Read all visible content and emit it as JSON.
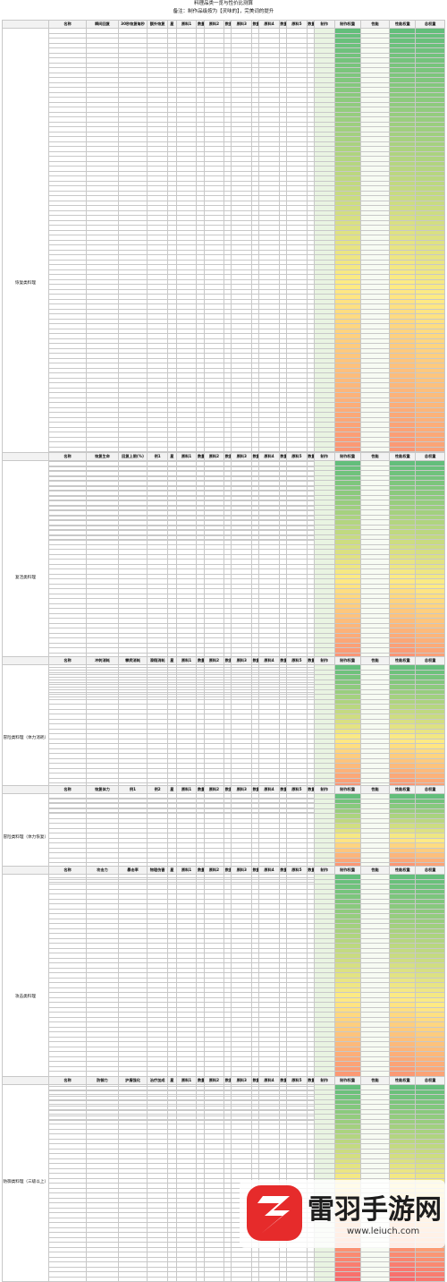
{
  "header": {
    "title": "料理品类一览与性价比测算",
    "note": "备注：制作品级按为【灵味的】，完美词的提升"
  },
  "columns": {
    "recovery": [
      "名称",
      "瞬间回复",
      "30秒恢复每秒",
      "额外恢复",
      "星",
      "原料1",
      "数量",
      "原料2",
      "数量",
      "原料3",
      "数量",
      "原料4",
      "数量",
      "原料5",
      "数量",
      "制作",
      "制作权重",
      "性能",
      "性能权重",
      "总权重"
    ],
    "revive": [
      "名称",
      "恢复生命",
      "回复上限(%)",
      "例1",
      "星",
      "原料1",
      "数量",
      "原料2",
      "数量",
      "原料3",
      "数量",
      "原料4",
      "数量",
      "原料5",
      "数量",
      "制作",
      "制作权重",
      "性能",
      "性能权重",
      "总权重"
    ],
    "adventure": [
      "名称",
      "冲刺消耗",
      "攀爬消耗",
      "滑翔消耗",
      "星",
      "原料1",
      "数量",
      "原料2",
      "数量",
      "原料3",
      "数量",
      "原料4",
      "数量",
      "原料5",
      "数量",
      "制作",
      "制作权重",
      "性能",
      "性能权重",
      "总权重"
    ],
    "adventure2": [
      "名称",
      "恢复体力",
      "例1",
      "例2",
      "星",
      "原料1",
      "数量",
      "原料2",
      "数量",
      "原料3",
      "数量",
      "原料4",
      "数量",
      "原料5",
      "数量",
      "制作",
      "制作权重",
      "性能",
      "性能权重",
      "总权重"
    ],
    "attack": [
      "名称",
      "攻击力",
      "暴击率",
      "物理伤害",
      "星",
      "原料1",
      "数量",
      "原料2",
      "数量",
      "原料3",
      "数量",
      "原料4",
      "数量",
      "原料5",
      "数量",
      "制作",
      "制作权重",
      "性能",
      "性能权重",
      "总权重"
    ],
    "defense": [
      "名称",
      "防御力",
      "护盾强化",
      "治疗加成",
      "星",
      "原料1",
      "数量",
      "原料2",
      "数量",
      "原料3",
      "数量",
      "原料4",
      "数量",
      "原料5",
      "数量",
      "制作",
      "制作权重",
      "性能",
      "性能权重",
      "总权重"
    ]
  },
  "categories": {
    "recovery": "恢复类料理",
    "revive": "复活类料理",
    "adventure": "冒险类料理（体力消耗）",
    "adventure2": "冒险类料理（体力恢复）",
    "attack": "攻击类料理",
    "crit": "暴击类料理",
    "special": "特殊类料理",
    "defense": "防御类料理（三级以上）"
  },
  "watermark": {
    "title": "雷羽手游网",
    "url": "www.leiuch.com"
  }
}
